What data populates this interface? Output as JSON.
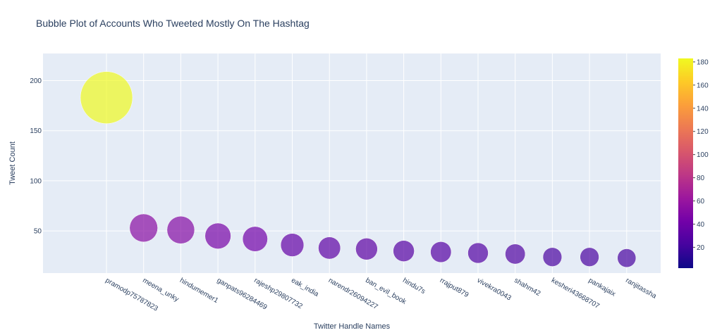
{
  "chart_data": {
    "type": "scatter",
    "title": "Bubble Plot of Accounts Who Tweeted Mostly On The Hashtag",
    "xlabel": "Twitter Handle Names",
    "ylabel": "Tweet Count",
    "ylim": [
      8,
      227
    ],
    "yticks": [
      50,
      100,
      150,
      200
    ],
    "categories": [
      "pramodp75787823",
      "meena_unky",
      "hindumemer1",
      "ganpats96284469",
      "rajeshp29807732",
      "eak_india",
      "narendr26094227",
      "ban_evil_book",
      "hindu7s",
      "rrajput879",
      "vivekra0043",
      "shahm42",
      "kesheri43668707",
      "pankajaix",
      "ranjitassha"
    ],
    "values": [
      183,
      53,
      51,
      45,
      42,
      36,
      33,
      32,
      30,
      29,
      28,
      27,
      24,
      24,
      23
    ],
    "colorscale": [
      "#0d0887",
      "#46039f",
      "#7201a8",
      "#9c179e",
      "#bd3786",
      "#d8576b",
      "#ed7953",
      "#fb9f3a",
      "#fdca26",
      "#f0f921"
    ],
    "colorbar": {
      "min": 2,
      "max": 183,
      "ticks": [
        20,
        40,
        60,
        80,
        100,
        120,
        140,
        160,
        180
      ]
    },
    "grid": true,
    "plot_bg": "#e5ecf6"
  }
}
